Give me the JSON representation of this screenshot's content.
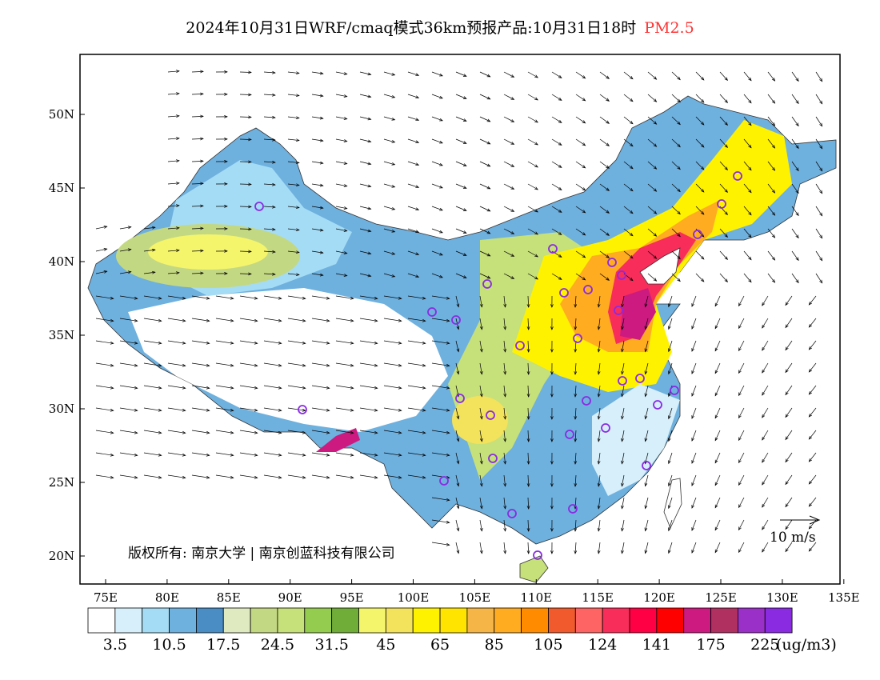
{
  "title": {
    "main": "2024年10月31日WRF/cmaq模式36km预报产品:10月31日18时",
    "variable": "PM2.5"
  },
  "map": {
    "lon_ticks": [
      "75E",
      "80E",
      "85E",
      "90E",
      "95E",
      "100E",
      "105E",
      "110E",
      "115E",
      "120E",
      "125E",
      "130E",
      "135E"
    ],
    "lat_ticks": [
      "50N",
      "45N",
      "40N",
      "35N",
      "30N",
      "25N",
      "20N"
    ],
    "copyright": "版权所有: 南京大学 | 南京创蓝科技有限公司",
    "wind_reference": "10 m/s"
  },
  "colorbar": {
    "colors": [
      "#ffffff",
      "#d6effa",
      "#a5dcf5",
      "#6eb0de",
      "#4a8cc4",
      "#dfeac0",
      "#c3d882",
      "#c6e07a",
      "#94cc50",
      "#6fac38",
      "#f5f56c",
      "#f2e25c",
      "#fff200",
      "#ffe400",
      "#f6b547",
      "#ffac21",
      "#ff8c00",
      "#f05a2c",
      "#ff6464",
      "#f82d5a",
      "#ff0044",
      "#ff0000",
      "#cc1a80",
      "#b03060",
      "#9b30c8",
      "#8a2be2"
    ],
    "labels": [
      "3.5",
      "10.5",
      "17.5",
      "24.5",
      "31.5",
      "45",
      "65",
      "85",
      "105",
      "124",
      "141",
      "175",
      "225"
    ],
    "unit": "(ug/m3)"
  }
}
